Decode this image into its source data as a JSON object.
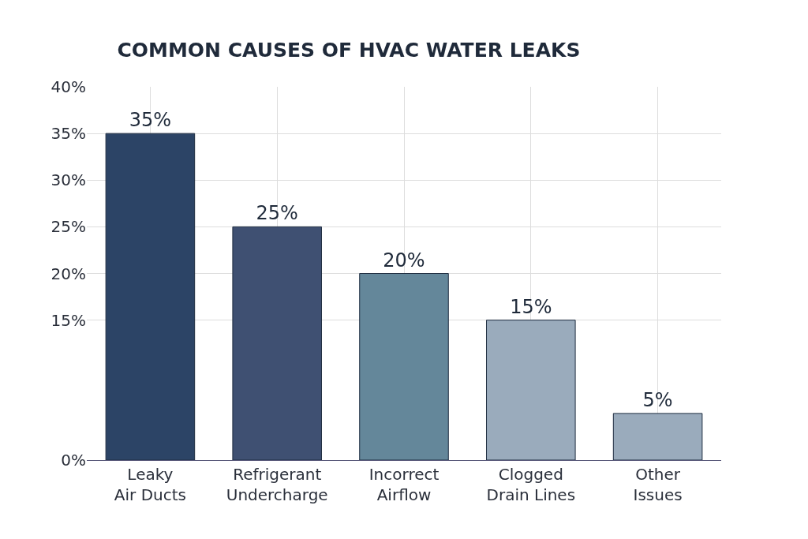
{
  "chart_data": {
    "type": "bar",
    "title": "COMMON CAUSES OF HVAC WATER LEAKS",
    "categories": [
      "Leaky\nAir Ducts",
      "Refrigerant\nUndercharge",
      "Incorrect\nAirflow",
      "Clogged\nDrain Lines",
      "Other\nIssues"
    ],
    "values": [
      35,
      25,
      20,
      15,
      5
    ],
    "colors": [
      "#2c4466",
      "#3f5072",
      "#64879a",
      "#9aabbc",
      "#9aabbc"
    ],
    "value_labels": [
      "35%",
      "25%",
      "20%",
      "15%",
      "5%"
    ],
    "ylim": [
      0,
      40
    ],
    "yticks": [
      {
        "value": 0,
        "label": "0%"
      },
      {
        "value": 15,
        "label": "15%"
      },
      {
        "value": 20,
        "label": "20%"
      },
      {
        "value": 25,
        "label": "25%"
      },
      {
        "value": 30,
        "label": "30%"
      },
      {
        "value": 35,
        "label": "35%"
      },
      {
        "value": 40,
        "label": "40%"
      }
    ],
    "grid": true
  }
}
